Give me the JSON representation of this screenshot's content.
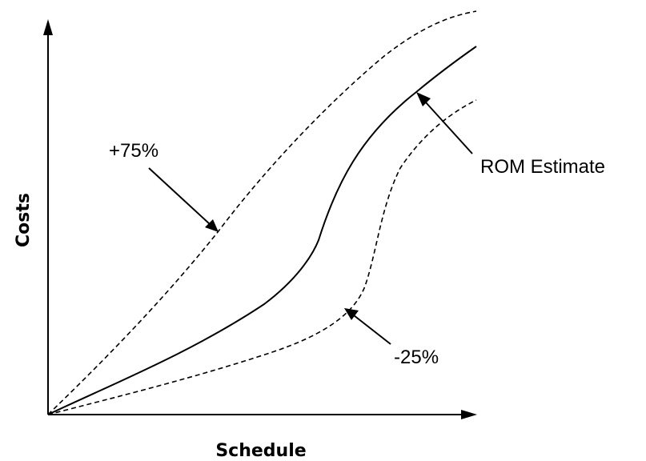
{
  "axes": {
    "x_title": "Schedule",
    "y_title": "Costs"
  },
  "curves": {
    "upper_label": "+75%",
    "middle_label": "ROM Estimate",
    "lower_label": "-25%"
  }
}
